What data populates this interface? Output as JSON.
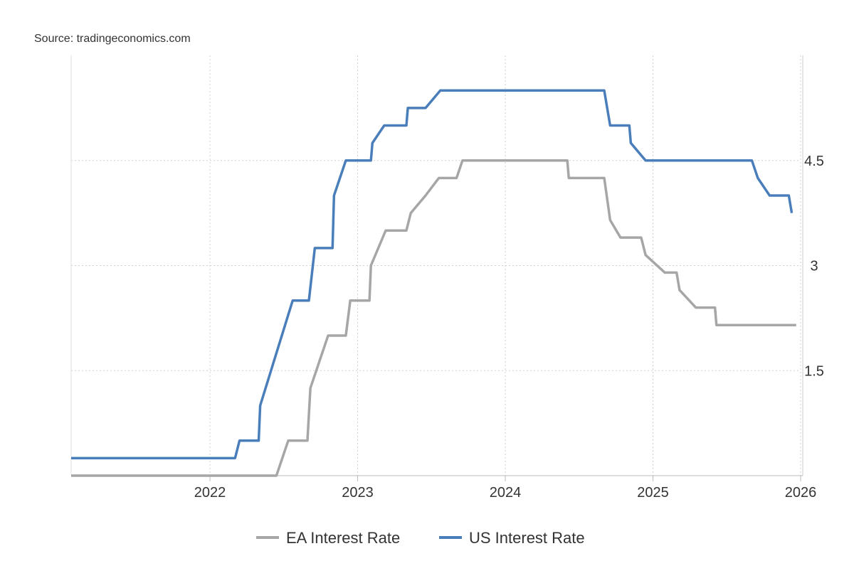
{
  "chart_data": {
    "type": "line",
    "source": "Source: tradingeconomics.com",
    "xlim": [
      2021.06,
      2026.0
    ],
    "xticks": [
      2022,
      2023,
      2024,
      2025,
      2026
    ],
    "ylim": [
      0,
      6
    ],
    "yticks": [
      1.5,
      3,
      4.5
    ],
    "grid": true,
    "legend": "bottom",
    "series": [
      {
        "name": "EA Interest Rate",
        "color": "#a6a6a6",
        "x": [
          2021.06,
          2022.45,
          2022.53,
          2022.66,
          2022.68,
          2022.8,
          2022.92,
          2022.95,
          2023.08,
          2023.09,
          2023.19,
          2023.33,
          2023.36,
          2023.46,
          2023.55,
          2023.67,
          2023.71,
          2024.42,
          2024.43,
          2024.67,
          2024.71,
          2024.78,
          2024.92,
          2024.95,
          2025.08,
          2025.16,
          2025.18,
          2025.29,
          2025.42,
          2025.43,
          2025.97
        ],
        "values": [
          0,
          0,
          0.5,
          0.5,
          1.25,
          2,
          2,
          2.5,
          2.5,
          3,
          3.5,
          3.5,
          3.75,
          4,
          4.25,
          4.25,
          4.5,
          4.5,
          4.25,
          4.25,
          3.65,
          3.4,
          3.4,
          3.15,
          2.9,
          2.9,
          2.65,
          2.4,
          2.4,
          2.15,
          2.15
        ]
      },
      {
        "name": "US Interest Rate",
        "color": "#4a7ebb",
        "x": [
          2021.06,
          2022.17,
          2022.2,
          2022.33,
          2022.34,
          2022.45,
          2022.56,
          2022.67,
          2022.71,
          2022.83,
          2022.84,
          2022.92,
          2023.09,
          2023.1,
          2023.18,
          2023.33,
          2023.34,
          2023.46,
          2023.56,
          2024.67,
          2024.71,
          2024.84,
          2024.85,
          2024.95,
          2025.67,
          2025.71,
          2025.79,
          2025.92,
          2025.94
        ],
        "values": [
          0.25,
          0.25,
          0.5,
          0.5,
          1,
          1.75,
          2.5,
          2.5,
          3.25,
          3.25,
          4,
          4.5,
          4.5,
          4.75,
          5,
          5,
          5.25,
          5.25,
          5.5,
          5.5,
          5,
          5,
          4.75,
          4.5,
          4.5,
          4.25,
          4,
          4,
          3.75
        ]
      }
    ]
  }
}
